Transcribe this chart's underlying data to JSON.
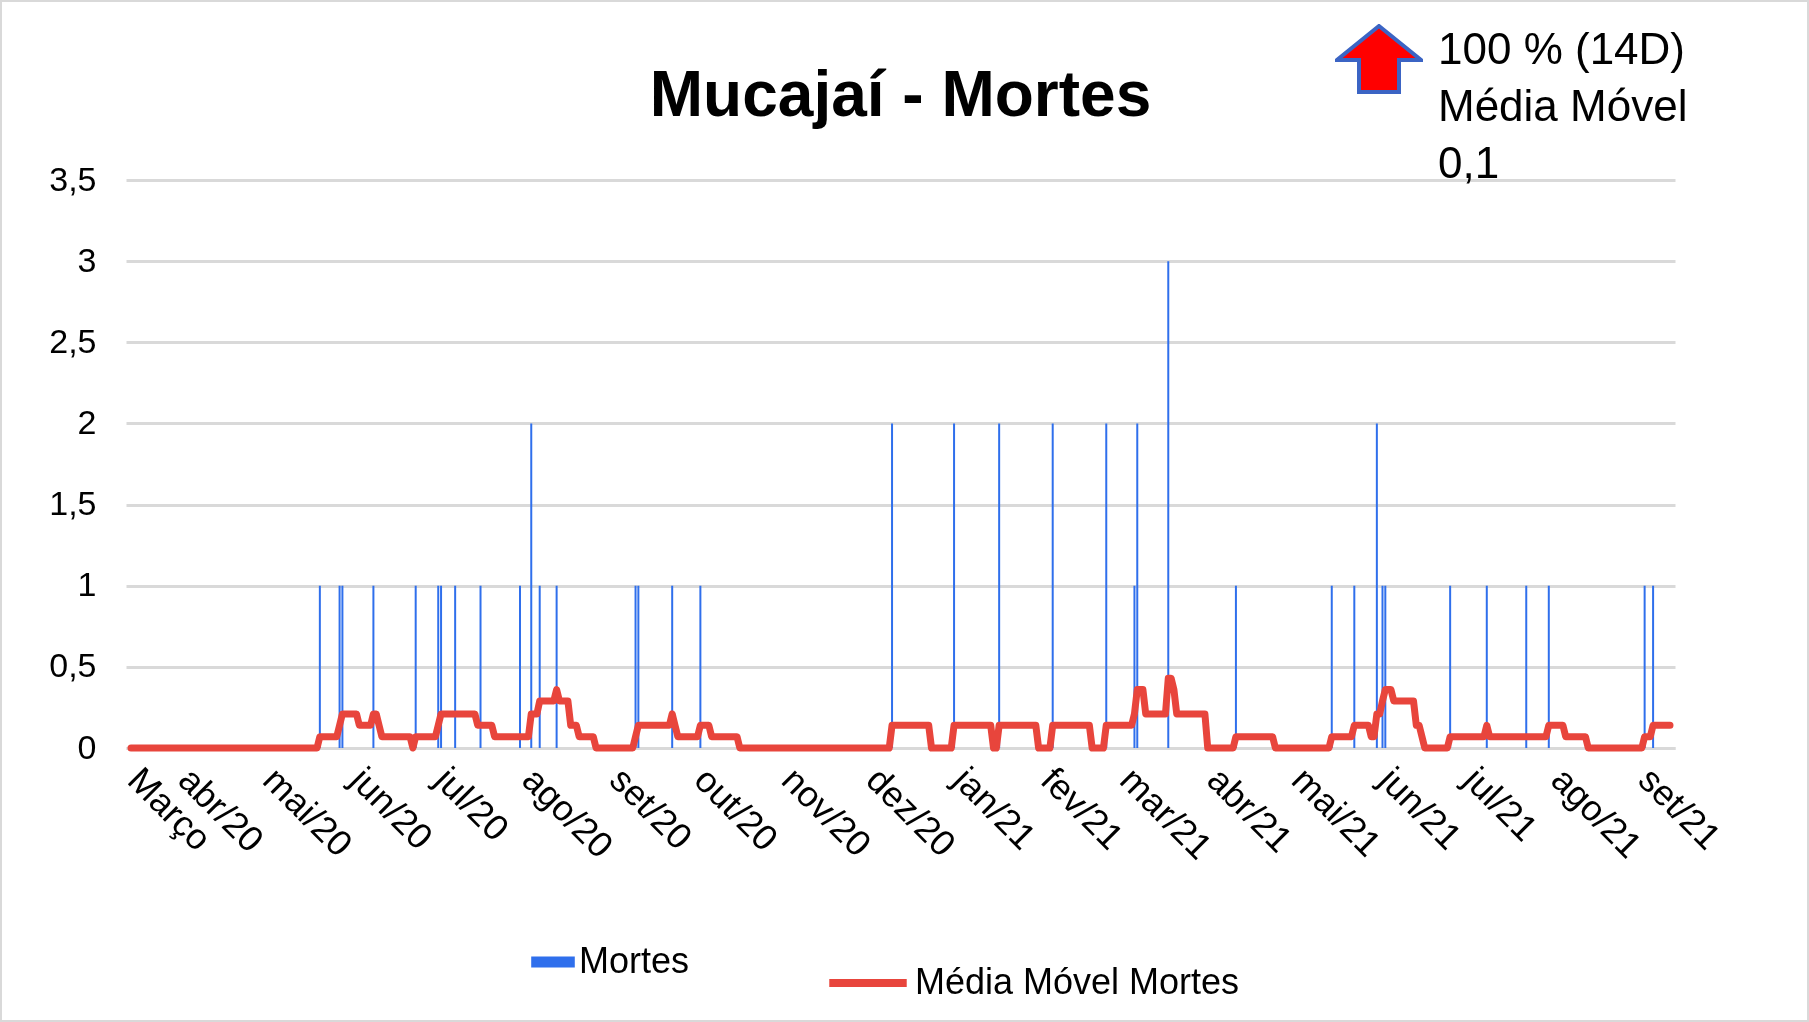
{
  "chart_data": {
    "type": "bar",
    "title": "Mucajaí - Mortes",
    "annotations": [
      "100 % (14D)",
      "Média Móvel",
      "0,1"
    ],
    "legend": "bottom",
    "grid": "y",
    "xlim": [
      "2020-03-14",
      "2021-09-11"
    ],
    "xticks": [
      {
        "value": "2020-03-14",
        "label": "Março"
      },
      {
        "value": "2020-04-01",
        "label": "abr/20"
      },
      {
        "value": "2020-05-01",
        "label": "mai/20"
      },
      {
        "value": "2020-06-01",
        "label": "jun/20"
      },
      {
        "value": "2020-07-01",
        "label": "jul/20"
      },
      {
        "value": "2020-08-01",
        "label": "ago/20"
      },
      {
        "value": "2020-09-01",
        "label": "set/20"
      },
      {
        "value": "2020-10-01",
        "label": "out/20"
      },
      {
        "value": "2020-11-01",
        "label": "nov/20"
      },
      {
        "value": "2020-12-01",
        "label": "dez/20"
      },
      {
        "value": "2021-01-01",
        "label": "jan/21"
      },
      {
        "value": "2021-02-01",
        "label": "fev/21"
      },
      {
        "value": "2021-03-01",
        "label": "mar/21"
      },
      {
        "value": "2021-04-01",
        "label": "abr/21"
      },
      {
        "value": "2021-05-01",
        "label": "mai/21"
      },
      {
        "value": "2021-06-01",
        "label": "jun/21"
      },
      {
        "value": "2021-07-01",
        "label": "jul/21"
      },
      {
        "value": "2021-08-01",
        "label": "ago/21"
      },
      {
        "value": "2021-09-01",
        "label": "set/21"
      }
    ],
    "ylim": [
      0,
      3.5
    ],
    "yticks": [
      0,
      {
        "value": 0.5,
        "label": "0,5"
      },
      1,
      {
        "value": 1.5,
        "label": "1,5"
      },
      2,
      {
        "value": 2.5,
        "label": "2,5"
      },
      3,
      {
        "value": 3.5,
        "label": "3,5"
      }
    ],
    "series": [
      {
        "name": "Mortes",
        "color": "#2f6fec",
        "x": [
          "2020-05-20",
          "2020-05-27",
          "2020-05-28",
          "2020-06-08",
          "2020-06-23",
          "2020-07-01",
          "2020-07-02",
          "2020-07-07",
          "2020-07-16",
          "2020-07-30",
          "2020-08-03",
          "2020-08-06",
          "2020-08-12",
          "2020-09-09",
          "2020-09-10",
          "2020-09-22",
          "2020-10-02",
          "2020-12-09",
          "2020-12-31",
          "2021-01-16",
          "2021-02-04",
          "2021-02-23",
          "2021-03-05",
          "2021-03-06",
          "2021-03-17",
          "2021-04-10",
          "2021-05-14",
          "2021-05-22",
          "2021-05-30",
          "2021-06-01",
          "2021-06-02",
          "2021-06-25",
          "2021-07-08",
          "2021-07-22",
          "2021-07-30",
          "2021-09-02",
          "2021-09-05"
        ],
        "values": [
          1,
          1,
          1,
          1,
          1,
          1,
          1,
          1,
          1,
          1,
          2,
          1,
          1,
          1,
          1,
          1,
          1,
          2,
          2,
          2,
          2,
          2,
          1,
          2,
          3,
          1,
          1,
          1,
          2,
          1,
          1,
          1,
          1,
          1,
          1,
          1,
          1
        ]
      },
      {
        "name": "Média Móvel Mortes",
        "type": "line",
        "color": "#e8453c",
        "x": [
          "2020-03-14",
          "2020-05-19",
          "2020-05-20",
          "2020-05-26",
          "2020-05-27",
          "2020-05-28",
          "2020-06-02",
          "2020-06-03",
          "2020-06-07",
          "2020-06-08",
          "2020-06-09",
          "2020-06-10",
          "2020-06-11",
          "2020-06-21",
          "2020-06-22",
          "2020-06-23",
          "2020-06-30",
          "2020-07-01",
          "2020-07-02",
          "2020-07-14",
          "2020-07-15",
          "2020-07-20",
          "2020-07-21",
          "2020-08-02",
          "2020-08-03",
          "2020-08-05",
          "2020-08-06",
          "2020-08-11",
          "2020-08-12",
          "2020-08-13",
          "2020-08-16",
          "2020-08-17",
          "2020-08-19",
          "2020-08-20",
          "2020-08-25",
          "2020-08-26",
          "2020-09-08",
          "2020-09-09",
          "2020-09-10",
          "2020-09-21",
          "2020-09-22",
          "2020-09-23",
          "2020-09-24",
          "2020-10-01",
          "2020-10-02",
          "2020-10-05",
          "2020-10-06",
          "2020-10-15",
          "2020-10-16",
          "2020-12-08",
          "2020-12-09",
          "2020-12-22",
          "2020-12-23",
          "2020-12-30",
          "2020-12-31",
          "2021-01-13",
          "2021-01-14",
          "2021-01-15",
          "2021-01-16",
          "2021-01-29",
          "2021-01-30",
          "2021-02-03",
          "2021-02-04",
          "2021-02-17",
          "2021-02-18",
          "2021-02-22",
          "2021-02-23",
          "2021-03-04",
          "2021-03-05",
          "2021-03-06",
          "2021-03-08",
          "2021-03-09",
          "2021-03-16",
          "2021-03-17",
          "2021-03-18",
          "2021-03-19",
          "2021-03-20",
          "2021-03-30",
          "2021-03-31",
          "2021-04-09",
          "2021-04-10",
          "2021-04-23",
          "2021-04-24",
          "2021-05-13",
          "2021-05-14",
          "2021-05-21",
          "2021-05-22",
          "2021-05-27",
          "2021-05-28",
          "2021-05-29",
          "2021-05-30",
          "2021-05-31",
          "2021-06-01",
          "2021-06-02",
          "2021-06-04",
          "2021-06-05",
          "2021-06-12",
          "2021-06-13",
          "2021-06-14",
          "2021-06-15",
          "2021-06-16",
          "2021-06-24",
          "2021-06-25",
          "2021-07-07",
          "2021-07-08",
          "2021-07-09",
          "2021-07-29",
          "2021-07-30",
          "2021-08-04",
          "2021-08-05",
          "2021-08-12",
          "2021-08-13",
          "2021-09-01",
          "2021-09-02",
          "2021-09-04",
          "2021-09-05",
          "2021-09-11"
        ],
        "values": [
          0,
          0,
          0.07,
          0.07,
          0.14,
          0.21,
          0.21,
          0.14,
          0.14,
          0.21,
          0.21,
          0.14,
          0.07,
          0.07,
          0,
          0.07,
          0.07,
          0.14,
          0.21,
          0.21,
          0.14,
          0.14,
          0.07,
          0.07,
          0.21,
          0.21,
          0.29,
          0.29,
          0.36,
          0.29,
          0.29,
          0.14,
          0.14,
          0.07,
          0.07,
          0,
          0,
          0.07,
          0.14,
          0.14,
          0.21,
          0.14,
          0.07,
          0.07,
          0.14,
          0.14,
          0.07,
          0.07,
          0,
          0,
          0.14,
          0.14,
          0,
          0,
          0.14,
          0.14,
          0,
          0,
          0.14,
          0.14,
          0,
          0,
          0.14,
          0.14,
          0,
          0,
          0.14,
          0.14,
          0.21,
          0.36,
          0.36,
          0.21,
          0.21,
          0.43,
          0.43,
          0.36,
          0.21,
          0.21,
          0,
          0,
          0.07,
          0.07,
          0,
          0,
          0.07,
          0.07,
          0.14,
          0.14,
          0.07,
          0.07,
          0.21,
          0.21,
          0.29,
          0.36,
          0.36,
          0.29,
          0.29,
          0.14,
          0.14,
          0.07,
          0,
          0,
          0.07,
          0.07,
          0.14,
          0.07,
          0.07,
          0.14,
          0.14,
          0.07,
          0.07,
          0,
          0,
          0.07,
          0.07,
          0.14,
          0.14
        ]
      }
    ]
  }
}
